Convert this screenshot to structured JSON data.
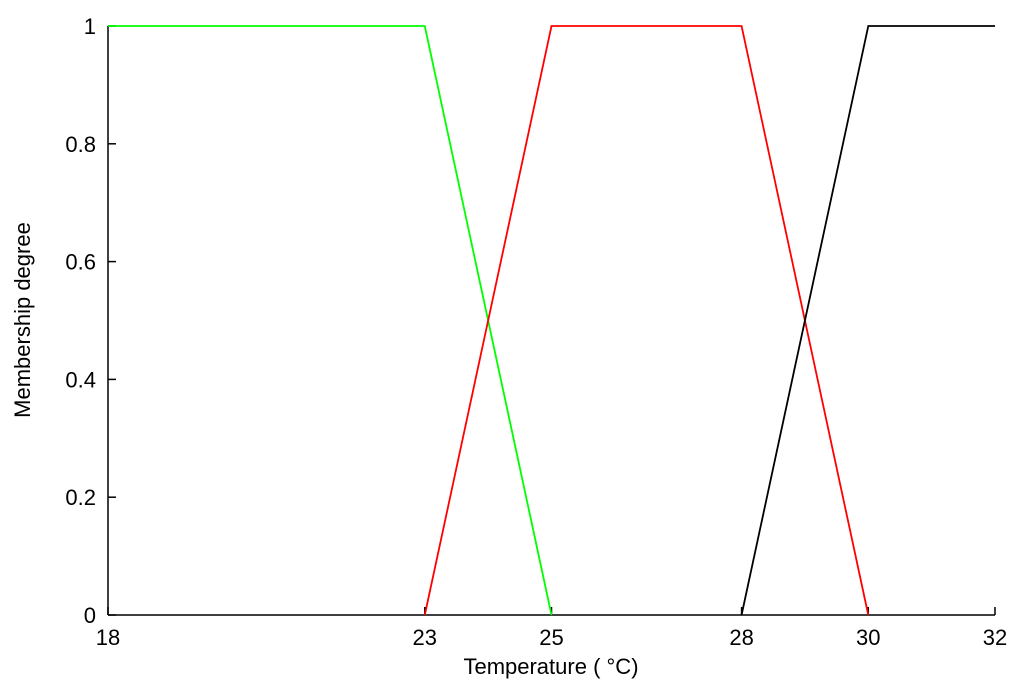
{
  "chart_data": {
    "type": "line",
    "xlabel": "Temperature ( °C)",
    "ylabel": "Membership degree",
    "xlim": [
      18,
      32
    ],
    "xticks": [
      18,
      23,
      25,
      28,
      30,
      32
    ],
    "ylim": [
      0,
      1
    ],
    "yticks": [
      0,
      0.2,
      0.4,
      0.6,
      0.8,
      1
    ],
    "grid": false,
    "series": [
      {
        "color": "#00ff00",
        "x": [
          18,
          23,
          25
        ],
        "values": [
          1,
          1,
          0
        ]
      },
      {
        "color": "#ff0000",
        "x": [
          23,
          25,
          28,
          30
        ],
        "values": [
          0,
          1,
          1,
          0
        ]
      },
      {
        "color": "#000000",
        "x": [
          28,
          30,
          32
        ],
        "values": [
          0,
          1,
          1
        ]
      }
    ]
  }
}
